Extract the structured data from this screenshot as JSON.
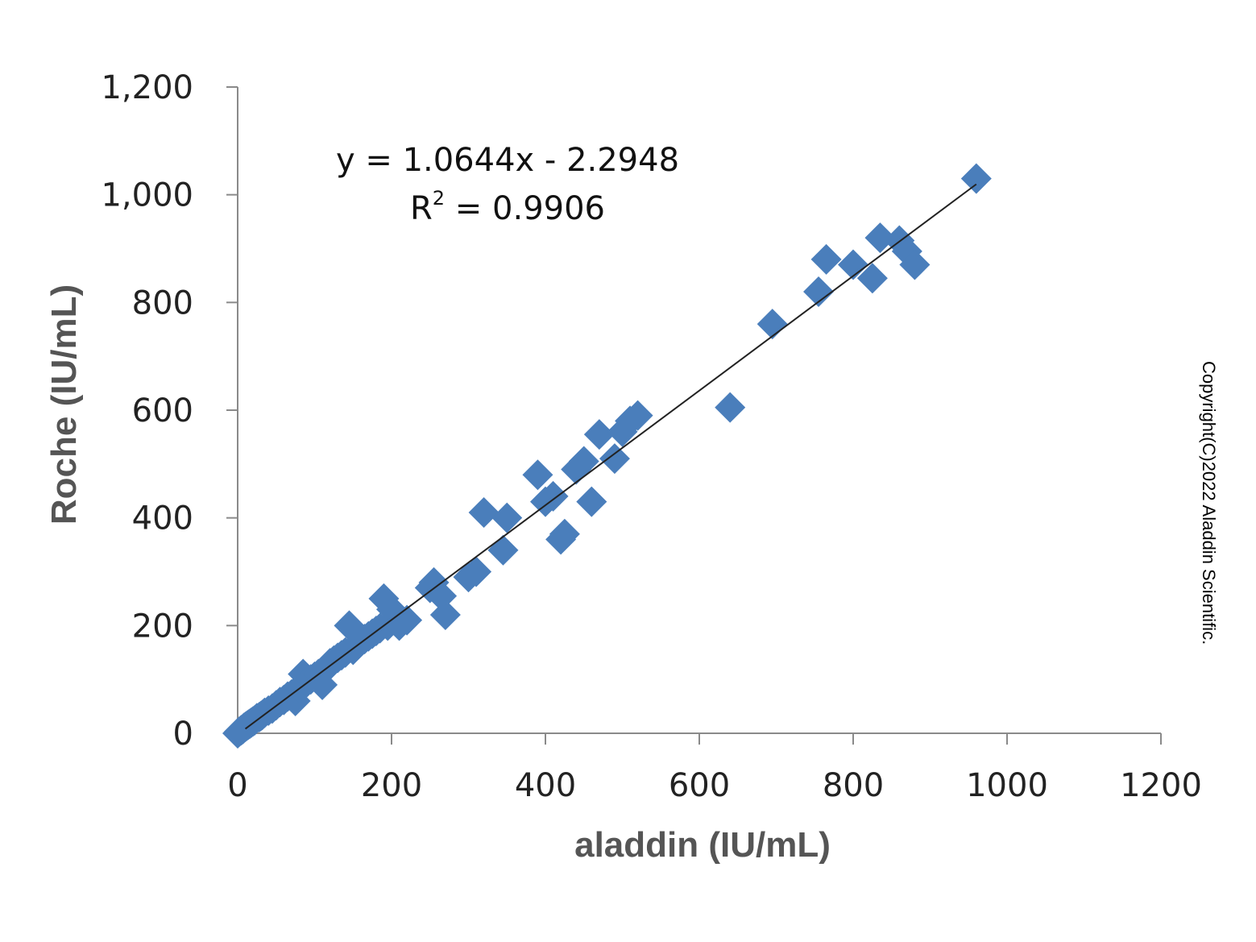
{
  "chart_data": {
    "type": "scatter",
    "xlabel": "aladdin (IU/mL)",
    "ylabel": "Roche (IU/mL)",
    "xlim": [
      0,
      1200
    ],
    "ylim": [
      0,
      1200
    ],
    "x_ticks": [
      "0",
      "200",
      "400",
      "600",
      "800",
      "1000",
      "1200"
    ],
    "y_ticks": [
      "0",
      "200",
      "400",
      "600",
      "800",
      "1,000",
      "1,200"
    ],
    "grid": false,
    "legend": "none",
    "marker": "diamond",
    "marker_color": "#4a7ebb",
    "trendline": {
      "slope": 1.0644,
      "intercept": -2.2948,
      "x_range": [
        10,
        960
      ],
      "equation": "y = 1.0644x - 2.2948",
      "r_squared_label": "R",
      "r_squared_sup": "2",
      "r_squared_value": " = 0.9906"
    },
    "series": [
      {
        "x": [
          0,
          2,
          4,
          5,
          7,
          8,
          10,
          12,
          14,
          16,
          18,
          20,
          22,
          25,
          28,
          30,
          32,
          35,
          40,
          45,
          50,
          55,
          60,
          65,
          70,
          75,
          80,
          85,
          90,
          95,
          100,
          105,
          110,
          115,
          120,
          125,
          130,
          135,
          140,
          145,
          150,
          155,
          160,
          165,
          170,
          175,
          180,
          185,
          190,
          195,
          200,
          210,
          220,
          250,
          255,
          265,
          270,
          300,
          310,
          320,
          345,
          350,
          390,
          400,
          410,
          420,
          425,
          440,
          450,
          460,
          470,
          490,
          500,
          510,
          520,
          640,
          695,
          755,
          765,
          800,
          825,
          835,
          860,
          870,
          880,
          960
        ],
        "y": [
          0,
          3,
          5,
          6,
          8,
          10,
          12,
          14,
          16,
          18,
          20,
          22,
          24,
          28,
          30,
          32,
          34,
          38,
          42,
          46,
          52,
          58,
          62,
          68,
          72,
          60,
          85,
          110,
          95,
          100,
          105,
          110,
          90,
          120,
          130,
          135,
          140,
          145,
          150,
          200,
          155,
          165,
          170,
          175,
          180,
          185,
          190,
          195,
          250,
          200,
          230,
          200,
          210,
          270,
          280,
          255,
          220,
          290,
          300,
          410,
          340,
          400,
          480,
          430,
          440,
          360,
          370,
          490,
          505,
          430,
          555,
          510,
          560,
          580,
          590,
          605,
          760,
          820,
          880,
          870,
          845,
          920,
          915,
          895,
          870,
          1030
        ]
      }
    ]
  },
  "watermark": "Copyright(C)2022 Aladdin Scientific."
}
